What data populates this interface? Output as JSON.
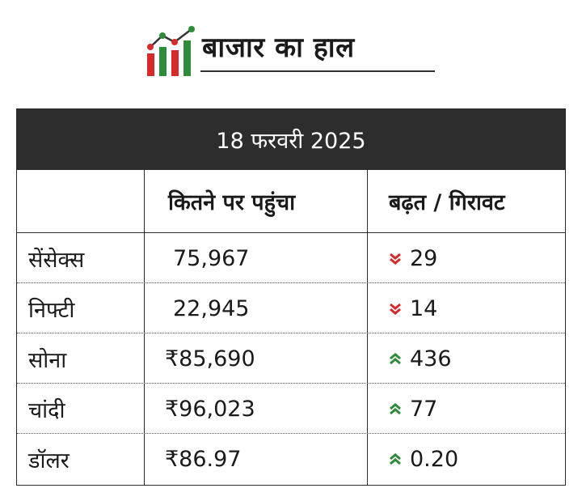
{
  "title": "बाजार का हाल",
  "date": "18 फरवरी 2025",
  "columns": [
    "",
    "कितने पर पहुंचा",
    "बढ़त / गिरावट"
  ],
  "rows": [
    {
      "name": "सेंसेक्स",
      "value": "75,967",
      "direction": "down",
      "change": "29"
    },
    {
      "name": "निफ्टी",
      "value": "22,945",
      "direction": "down",
      "change": "14"
    },
    {
      "name": "सोना",
      "value": "₹85,690",
      "direction": "up",
      "change": "436"
    },
    {
      "name": "चांदी",
      "value": "₹96,023",
      "direction": "up",
      "change": "77"
    },
    {
      "name": "डॉलर",
      "value": "₹86.97",
      "direction": "up",
      "change": "0.20"
    }
  ],
  "colors": {
    "up": "#2e8b3a",
    "down": "#d62b2b",
    "header_bg": "#2d2d2d"
  },
  "icons": {
    "logo": "market-chart-logo-icon",
    "up": "double-chevron-up-icon",
    "down": "double-chevron-down-icon"
  }
}
